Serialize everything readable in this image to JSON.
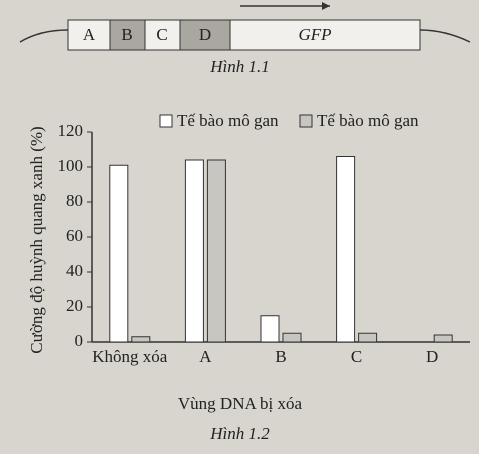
{
  "diagram": {
    "segments": [
      "A",
      "B",
      "C",
      "D",
      "GFP"
    ],
    "caption": "Hình 1.1"
  },
  "chart_data": {
    "type": "bar",
    "caption": "Hình 1.2",
    "x_label": "Vùng DNA bị xóa",
    "y_label": "Cường độ huỳnh quang xanh (%)",
    "categories": [
      "Không xóa",
      "A",
      "B",
      "C",
      "D"
    ],
    "series": [
      {
        "name": "Tế bào mô gan",
        "color": "#ffffff",
        "values": [
          101,
          104,
          15,
          106,
          0
        ]
      },
      {
        "name": "Tế bào mô gan",
        "color": "#c8c6c0",
        "values": [
          3,
          104,
          5,
          5,
          4
        ]
      }
    ],
    "ylim": [
      0,
      120
    ],
    "yticks": [
      0,
      20,
      40,
      60,
      80,
      100,
      120
    ]
  }
}
